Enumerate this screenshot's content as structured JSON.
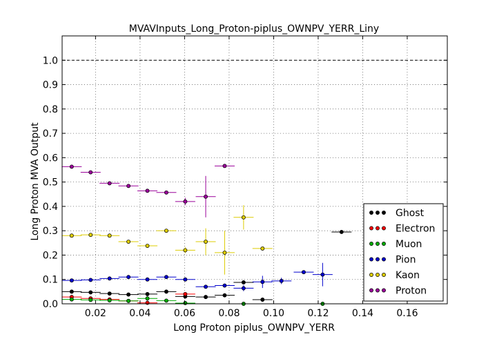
{
  "chart_data": {
    "type": "scatter",
    "title": "MVAVInputs_Long_Proton-piplus_OWNPV_YERR_Liny",
    "xlabel": "Long Proton piplus_OWNPV_YERR",
    "ylabel": "Long Proton MVA Output",
    "xlim": [
      0.005,
      0.178
    ],
    "ylim": [
      0.0,
      1.1
    ],
    "xticks": [
      "0.02",
      "0.04",
      "0.06",
      "0.08",
      "0.10",
      "0.12",
      "0.14",
      "0.16"
    ],
    "xtick_values": [
      0.02,
      0.04,
      0.06,
      0.08,
      0.1,
      0.12,
      0.14,
      0.16
    ],
    "yticks": [
      "0.0",
      "0.1",
      "0.2",
      "0.3",
      "0.4",
      "0.5",
      "0.6",
      "0.7",
      "0.8",
      "0.9",
      "1.0"
    ],
    "ytick_values": [
      0.0,
      0.1,
      0.2,
      0.3,
      0.4,
      0.5,
      0.6,
      0.7,
      0.8,
      0.9,
      1.0
    ],
    "reference_line": 1.0,
    "grid": true,
    "legend_position": "lower-right",
    "series": [
      {
        "name": "Ghost",
        "color": "#000000",
        "points": [
          {
            "x": 0.0093,
            "y": 0.05,
            "xerr": 0.0045,
            "yerr": 0.004
          },
          {
            "x": 0.0178,
            "y": 0.047,
            "xerr": 0.0045,
            "yerr": 0.004
          },
          {
            "x": 0.0263,
            "y": 0.042,
            "xerr": 0.0045,
            "yerr": 0.004
          },
          {
            "x": 0.0348,
            "y": 0.038,
            "xerr": 0.0045,
            "yerr": 0.004
          },
          {
            "x": 0.0433,
            "y": 0.04,
            "xerr": 0.0045,
            "yerr": 0.004
          },
          {
            "x": 0.0518,
            "y": 0.05,
            "xerr": 0.0045,
            "yerr": 0.005
          },
          {
            "x": 0.0603,
            "y": 0.03,
            "xerr": 0.0045,
            "yerr": 0.006
          },
          {
            "x": 0.0695,
            "y": 0.028,
            "xerr": 0.0045,
            "yerr": 0.006
          },
          {
            "x": 0.078,
            "y": 0.035,
            "xerr": 0.0045,
            "yerr": 0.007
          },
          {
            "x": 0.0865,
            "y": 0.088,
            "xerr": 0.0045,
            "yerr": 0.008
          },
          {
            "x": 0.095,
            "y": 0.017,
            "xerr": 0.0045,
            "yerr": 0.008
          },
          {
            "x": 0.1305,
            "y": 0.295,
            "xerr": 0.0045,
            "yerr": 0.005
          }
        ]
      },
      {
        "name": "Electron",
        "color": "#ff0000",
        "points": [
          {
            "x": 0.0093,
            "y": 0.028,
            "xerr": 0.0045,
            "yerr": 0.003
          },
          {
            "x": 0.0178,
            "y": 0.022,
            "xerr": 0.0045,
            "yerr": 0.003
          },
          {
            "x": 0.0263,
            "y": 0.018,
            "xerr": 0.0045,
            "yerr": 0.003
          },
          {
            "x": 0.0348,
            "y": 0.012,
            "xerr": 0.0045,
            "yerr": 0.003
          },
          {
            "x": 0.0433,
            "y": 0.004,
            "xerr": 0.0045,
            "yerr": 0.003
          },
          {
            "x": 0.0603,
            "y": 0.04,
            "xerr": 0.0045,
            "yerr": 0.006
          }
        ]
      },
      {
        "name": "Muon",
        "color": "#00aa00",
        "points": [
          {
            "x": 0.0093,
            "y": 0.018,
            "xerr": 0.0045,
            "yerr": 0.003
          },
          {
            "x": 0.0178,
            "y": 0.016,
            "xerr": 0.0045,
            "yerr": 0.003
          },
          {
            "x": 0.0263,
            "y": 0.014,
            "xerr": 0.0045,
            "yerr": 0.003
          },
          {
            "x": 0.0348,
            "y": 0.012,
            "xerr": 0.0045,
            "yerr": 0.003
          },
          {
            "x": 0.0433,
            "y": 0.022,
            "xerr": 0.0045,
            "yerr": 0.004
          },
          {
            "x": 0.0518,
            "y": 0.013,
            "xerr": 0.0045,
            "yerr": 0.004
          },
          {
            "x": 0.0603,
            "y": 0.003,
            "xerr": 0.0045,
            "yerr": 0.003
          },
          {
            "x": 0.0865,
            "y": 0.0,
            "xerr": 0.0045,
            "yerr": 0.002
          },
          {
            "x": 0.122,
            "y": 0.0,
            "xerr": 0.0045,
            "yerr": 0.002
          }
        ]
      },
      {
        "name": "Pion",
        "color": "#0000cc",
        "points": [
          {
            "x": 0.0093,
            "y": 0.096,
            "xerr": 0.0045,
            "yerr": 0.004
          },
          {
            "x": 0.0178,
            "y": 0.098,
            "xerr": 0.0045,
            "yerr": 0.004
          },
          {
            "x": 0.0263,
            "y": 0.104,
            "xerr": 0.0045,
            "yerr": 0.004
          },
          {
            "x": 0.0348,
            "y": 0.11,
            "xerr": 0.0045,
            "yerr": 0.004
          },
          {
            "x": 0.0433,
            "y": 0.1,
            "xerr": 0.0045,
            "yerr": 0.004
          },
          {
            "x": 0.0518,
            "y": 0.11,
            "xerr": 0.0045,
            "yerr": 0.005
          },
          {
            "x": 0.0603,
            "y": 0.1,
            "xerr": 0.0045,
            "yerr": 0.005
          },
          {
            "x": 0.0695,
            "y": 0.07,
            "xerr": 0.0045,
            "yerr": 0.006
          },
          {
            "x": 0.078,
            "y": 0.075,
            "xerr": 0.0045,
            "yerr": 0.007
          },
          {
            "x": 0.0865,
            "y": 0.064,
            "xerr": 0.0045,
            "yerr": 0.012
          },
          {
            "x": 0.095,
            "y": 0.09,
            "xerr": 0.0045,
            "yerr": 0.025
          },
          {
            "x": 0.1035,
            "y": 0.094,
            "xerr": 0.0045,
            "yerr": 0.013
          },
          {
            "x": 0.1135,
            "y": 0.13,
            "xerr": 0.0045,
            "yerr": 0.006
          },
          {
            "x": 0.122,
            "y": 0.12,
            "xerr": 0.0045,
            "yerr": 0.048
          }
        ]
      },
      {
        "name": "Kaon",
        "color": "#ddcc00",
        "points": [
          {
            "x": 0.0093,
            "y": 0.28,
            "xerr": 0.0045,
            "yerr": 0.005
          },
          {
            "x": 0.0178,
            "y": 0.283,
            "xerr": 0.0045,
            "yerr": 0.005
          },
          {
            "x": 0.0263,
            "y": 0.28,
            "xerr": 0.0045,
            "yerr": 0.005
          },
          {
            "x": 0.0348,
            "y": 0.255,
            "xerr": 0.0045,
            "yerr": 0.006
          },
          {
            "x": 0.0433,
            "y": 0.238,
            "xerr": 0.0045,
            "yerr": 0.006
          },
          {
            "x": 0.0518,
            "y": 0.3,
            "xerr": 0.0045,
            "yerr": 0.008
          },
          {
            "x": 0.0603,
            "y": 0.22,
            "xerr": 0.0045,
            "yerr": 0.012
          },
          {
            "x": 0.0695,
            "y": 0.255,
            "xerr": 0.0045,
            "yerr": 0.055
          },
          {
            "x": 0.078,
            "y": 0.21,
            "xerr": 0.0045,
            "yerr": 0.09
          },
          {
            "x": 0.0865,
            "y": 0.355,
            "xerr": 0.0045,
            "yerr": 0.05
          },
          {
            "x": 0.095,
            "y": 0.227,
            "xerr": 0.0045,
            "yerr": 0.006
          }
        ]
      },
      {
        "name": "Proton",
        "color": "#990099",
        "points": [
          {
            "x": 0.0093,
            "y": 0.563,
            "xerr": 0.0045,
            "yerr": 0.004
          },
          {
            "x": 0.0178,
            "y": 0.54,
            "xerr": 0.0045,
            "yerr": 0.004
          },
          {
            "x": 0.0263,
            "y": 0.495,
            "xerr": 0.0045,
            "yerr": 0.004
          },
          {
            "x": 0.0348,
            "y": 0.484,
            "xerr": 0.0045,
            "yerr": 0.004
          },
          {
            "x": 0.0433,
            "y": 0.464,
            "xerr": 0.0045,
            "yerr": 0.004
          },
          {
            "x": 0.0518,
            "y": 0.457,
            "xerr": 0.0045,
            "yerr": 0.005
          },
          {
            "x": 0.0603,
            "y": 0.42,
            "xerr": 0.0045,
            "yerr": 0.015
          },
          {
            "x": 0.0695,
            "y": 0.44,
            "xerr": 0.0045,
            "yerr": 0.085
          },
          {
            "x": 0.078,
            "y": 0.566,
            "xerr": 0.0045,
            "yerr": 0.005
          }
        ]
      }
    ]
  }
}
